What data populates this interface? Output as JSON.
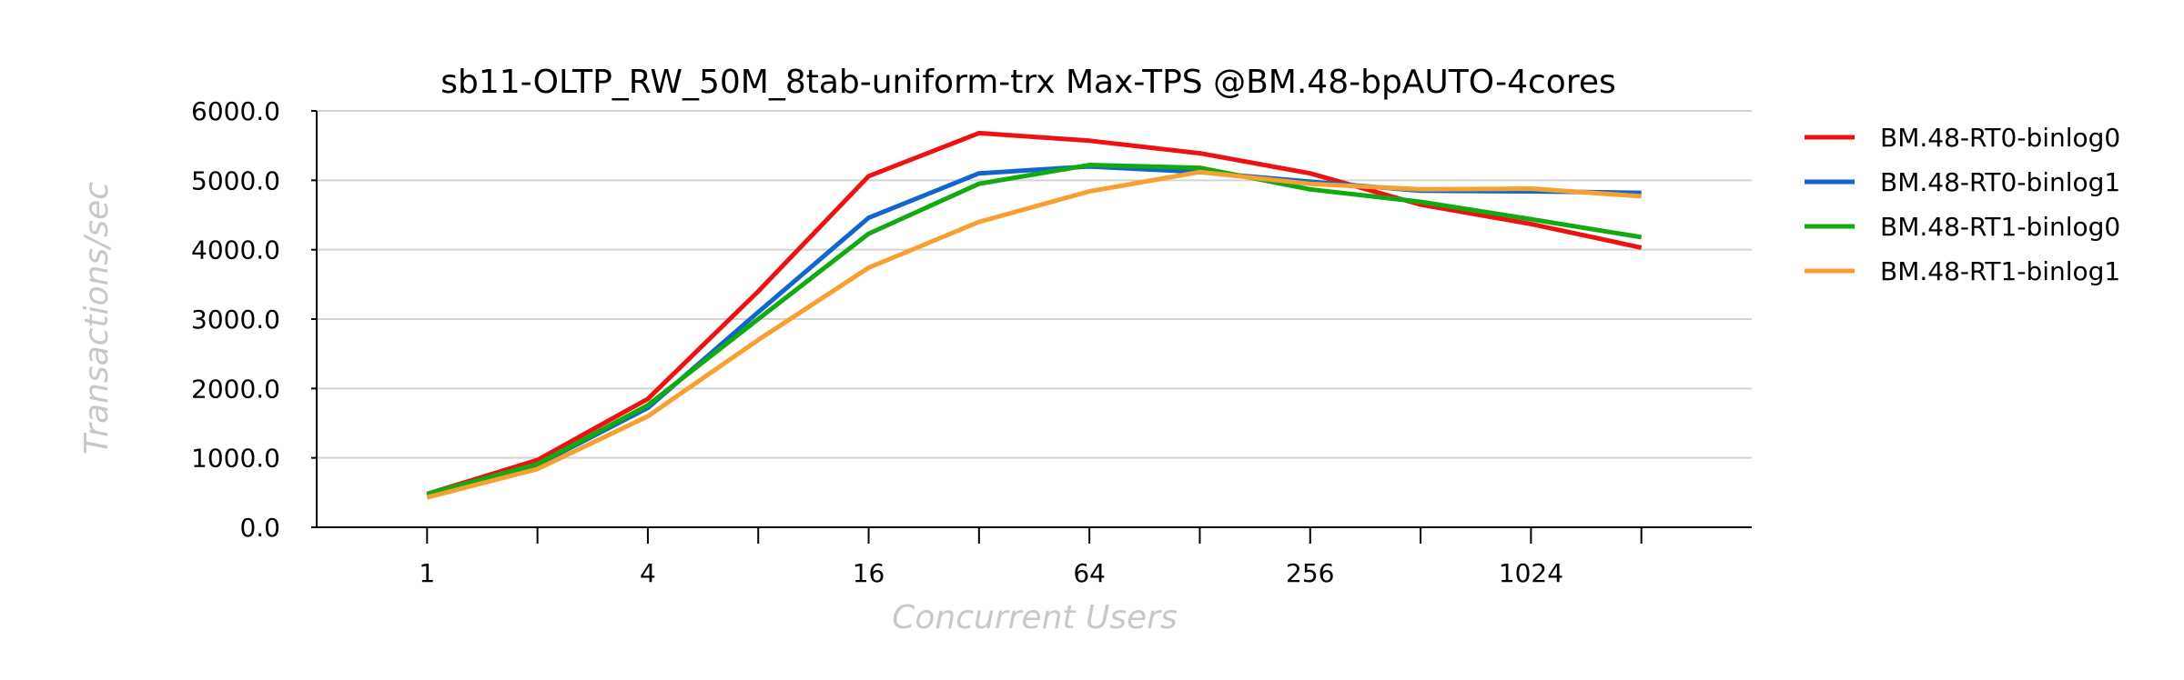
{
  "chart_data": {
    "type": "line",
    "title": "sb11-OLTP_RW_50M_8tab-uniform-trx Max-TPS @BM.48-bpAUTO-4cores",
    "xlabel": "Concurrent Users",
    "ylabel": "Transactions/sec",
    "x_scale": "log2",
    "x": [
      1,
      2,
      4,
      8,
      16,
      32,
      64,
      128,
      256,
      512,
      1024,
      2048
    ],
    "x_tick_labels": [
      "1",
      "4",
      "16",
      "64",
      "256",
      "1024"
    ],
    "x_tick_values": [
      1,
      4,
      16,
      64,
      256,
      1024
    ],
    "xlim": [
      0.5,
      4096
    ],
    "ylim": [
      0,
      6000
    ],
    "y_ticks": [
      0,
      1000,
      2000,
      3000,
      4000,
      5000,
      6000
    ],
    "y_tick_labels": [
      "0.0",
      "1000.0",
      "2000.0",
      "3000.0",
      "4000.0",
      "5000.0",
      "6000.0"
    ],
    "grid": "horizontal",
    "legend_position": "right",
    "series": [
      {
        "name": "BM.48-RT0-binlog0",
        "color": "#ee1111",
        "values": [
          480,
          970,
          1850,
          3400,
          5060,
          5680,
          5570,
          5390,
          5100,
          4650,
          4370,
          4030
        ]
      },
      {
        "name": "BM.48-RT0-binlog1",
        "color": "#1166cc",
        "values": [
          470,
          900,
          1720,
          3100,
          4460,
          5100,
          5200,
          5120,
          4980,
          4850,
          4840,
          4820
        ]
      },
      {
        "name": "BM.48-RT1-binlog0",
        "color": "#11aa11",
        "values": [
          480,
          910,
          1760,
          3000,
          4230,
          4950,
          5220,
          5180,
          4870,
          4690,
          4440,
          4180
        ]
      },
      {
        "name": "BM.48-RT1-binlog1",
        "color": "#f7a030",
        "values": [
          430,
          840,
          1600,
          2700,
          3740,
          4400,
          4840,
          5120,
          4950,
          4870,
          4880,
          4770
        ]
      }
    ]
  }
}
